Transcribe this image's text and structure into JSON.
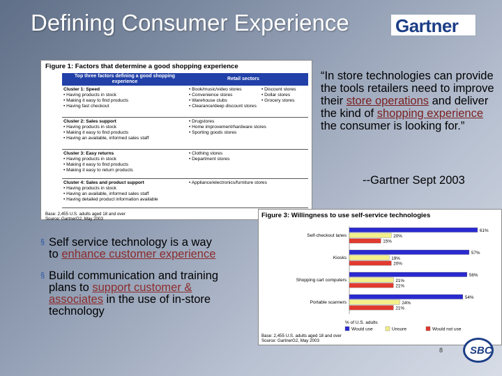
{
  "slide": {
    "title": "Defining Consumer Experience",
    "logo_text": "Gartner",
    "page_number": "8",
    "footer_logo_text": "SBC"
  },
  "figure1": {
    "title": "Figure 1: Factors that determine a good shopping experience",
    "header_left": "Top three factors defining a good shopping experience",
    "header_right": "Retail sectors",
    "clusters": [
      {
        "name": "Cluster 1: Speed",
        "items": [
          "• Having products in stock",
          "• Making it easy to find products",
          "• Having fast checkout"
        ],
        "sectors": [
          "• Book/music/video stores",
          "• Discount stores",
          "• Convenience stores",
          "• Dollar stores",
          "• Warehouse clubs",
          "• Grocery stores",
          "• Clearance/deep discount stores"
        ]
      },
      {
        "name": "Cluster 2: Sales support",
        "items": [
          "• Having products in stock",
          "• Making it easy to find products",
          "• Having an available, informed sales staff"
        ],
        "sectors": [
          "• Drugstores",
          "• Home improvement/hardware stores",
          "• Sporting goods stores"
        ]
      },
      {
        "name": "Cluster 3: Easy returns",
        "items": [
          "• Having products in stock",
          "• Making it easy to find products",
          "• Making it easy to return products"
        ],
        "sectors": [
          "• Clothing stores",
          "• Department stores"
        ]
      },
      {
        "name": "Cluster 4: Sales and product support",
        "items": [
          "• Having products in stock",
          "• Having an available, informed sales staff",
          "• Having detailed product information available"
        ],
        "sectors": [
          "• Appliance/electronics/furniture stores"
        ]
      }
    ],
    "base_line1": "Base: 2,455 U.S. adults aged 18 and over",
    "base_line2": "Source: GartnerG2, May 2003"
  },
  "quote": {
    "part1": "“In store technologies can provide the tools retailers need to improve their ",
    "hl1": "store operations",
    "part2": " and deliver the kind of ",
    "hl2": "shopping experience",
    "part3": "  the consumer is looking for.”",
    "attribution": "--Gartner Sept 2003"
  },
  "bullets": [
    {
      "marker": "§",
      "text1": "Self service technology is a way to ",
      "hl": "enhance customer experience",
      "text2": ""
    },
    {
      "marker": "§",
      "text1": "Build communication and training plans to ",
      "hl": "support customer & associates",
      "text2": " in the use of in-store technology"
    }
  ],
  "figure3": {
    "title": "Figure 3: Willingness to use self-service technologies",
    "base_line1": "Base: 2,455 U.S. adults aged 18 and over",
    "base_line2": "Source: GartnerG2, May 2003",
    "xlabel": "% of U.S. adults"
  },
  "chart_data": {
    "type": "bar",
    "orientation": "horizontal",
    "title": "Figure 3: Willingness to use self-service technologies",
    "categories": [
      "Self-checkout lanes",
      "Kiosks",
      "Shopping cart computers",
      "Portable scanners"
    ],
    "series": [
      {
        "name": "Would use",
        "values": [
          61,
          57,
          56,
          54
        ],
        "color": "#2a2ad0",
        "labels": [
          "61%",
          "57%",
          "56%",
          "54%"
        ]
      },
      {
        "name": "Unsure",
        "values": [
          20,
          19,
          21,
          24
        ],
        "color": "#f3ef8a",
        "labels": [
          "20%",
          "19%",
          "21%",
          "24%"
        ]
      },
      {
        "name": "Would not use",
        "values": [
          15,
          20,
          21,
          21
        ],
        "color": "#e23a2e",
        "labels": [
          "15%",
          "20%",
          "21%",
          "21%"
        ]
      }
    ],
    "xlabel": "% of U.S. adults",
    "xlim": [
      0,
      65
    ],
    "legend_position": "bottom",
    "grid": false
  },
  "colors": {
    "header_blue": "#2140a8",
    "highlight_text": "#7a1f1f",
    "bullet_marker": "#2b55a6"
  }
}
